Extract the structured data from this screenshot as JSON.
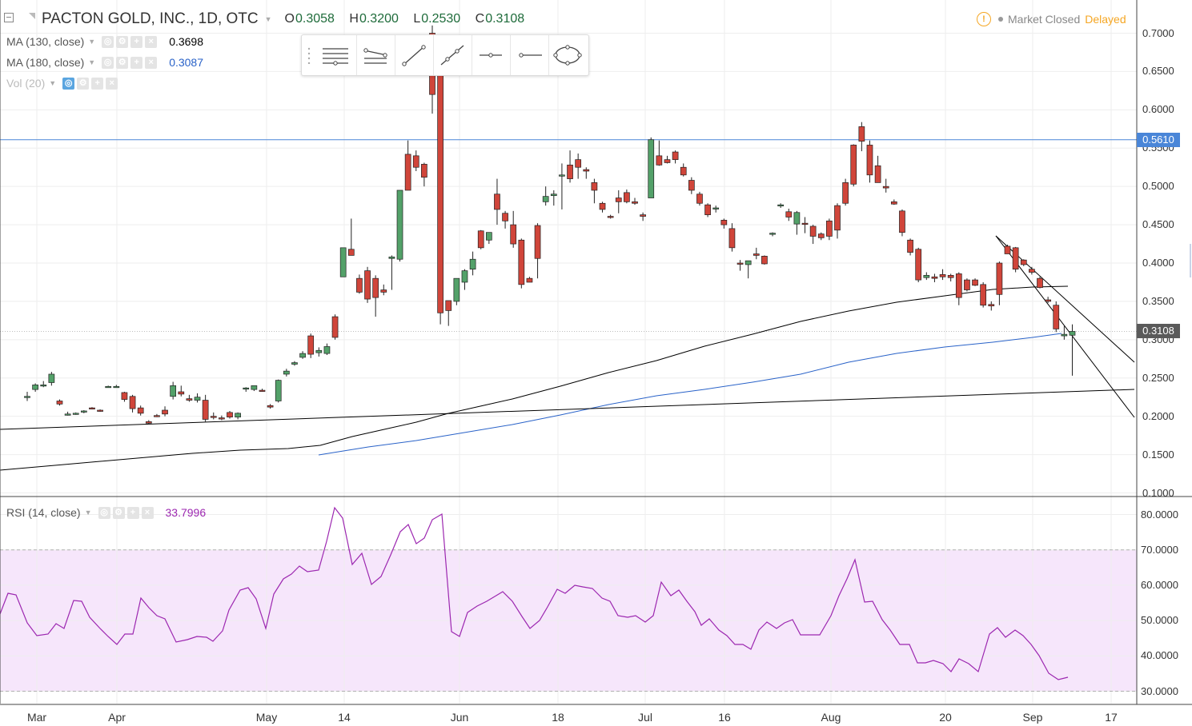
{
  "header": {
    "symbol_title": "PACTON GOLD, INC., 1D, OTC",
    "ohlc": [
      {
        "label": "O",
        "value": "0.3058"
      },
      {
        "label": "H",
        "value": "0.3200"
      },
      {
        "label": "L",
        "value": "0.2530"
      },
      {
        "label": "C",
        "value": "0.3108"
      }
    ]
  },
  "status": {
    "market": "Market Closed",
    "delayed": "Delayed",
    "icon": "warning-icon",
    "market_color": "#888888",
    "delayed_color": "#f5a623"
  },
  "indicators": [
    {
      "label": "MA (130, close)",
      "value": "0.3698",
      "color": "#000000"
    },
    {
      "label": "MA (180, close)",
      "value": "0.3087",
      "color": "#2962c8"
    },
    {
      "label": "Vol (20)",
      "value": "",
      "color": "#bbbbbb"
    }
  ],
  "rsi": {
    "label": "RSI (14, close)",
    "value": "33.7996",
    "color": "#9c27b0",
    "band_upper": 70,
    "band_lower": 30,
    "band_color": "#f6e6fb"
  },
  "toolbar": {
    "tools": [
      "horizontal-lines-tool-icon",
      "parallel-channel-tool-icon",
      "trend-line-tool-icon",
      "ray-tool-icon",
      "horizontal-ray-tool-icon",
      "horizontal-line-tool-icon",
      "ellipse-tool-icon"
    ]
  },
  "price_axis": {
    "ticks": [
      "0.7000",
      "0.6500",
      "0.6000",
      "0.5500",
      "0.5000",
      "0.4500",
      "0.4000",
      "0.3500",
      "0.3000",
      "0.2500",
      "0.2000",
      "0.1500",
      "0.1000"
    ],
    "tick_values": [
      0.7,
      0.65,
      0.6,
      0.55,
      0.5,
      0.45,
      0.4,
      0.35,
      0.3,
      0.25,
      0.2,
      0.15,
      0.1
    ],
    "horizontal_line_label": "0.5610",
    "horizontal_line_value": 0.561,
    "last_price_label": "0.3108",
    "last_price_value": 0.3108,
    "horizontal_line_color": "#4a86d8"
  },
  "rsi_axis": {
    "ticks": [
      "80.0000",
      "70.0000",
      "60.0000",
      "50.0000",
      "40.0000",
      "30.0000"
    ],
    "tick_values": [
      80,
      70,
      60,
      50,
      40,
      30
    ]
  },
  "time_axis": {
    "labels": [
      "Mar",
      "Apr",
      "May",
      "14",
      "Jun",
      "18",
      "Jul",
      "16",
      "Aug",
      "20",
      "Sep",
      "17"
    ]
  },
  "colors": {
    "up": "#53a169",
    "down": "#d0453a",
    "ma130": "#000000",
    "ma180": "#2962c8"
  },
  "chart_data": {
    "type": "candlestick",
    "symbol": "PACTON GOLD, INC.",
    "interval": "1D",
    "ylim": [
      0.1,
      0.7
    ],
    "series": [
      {
        "name": "OHLC",
        "values": [
          [
            0.226,
            0.232,
            0.22,
            0.226
          ],
          [
            0.235,
            0.243,
            0.232,
            0.241
          ],
          [
            0.241,
            0.246,
            0.238,
            0.241
          ],
          [
            0.244,
            0.258,
            0.24,
            0.255
          ],
          [
            0.22,
            0.222,
            0.214,
            0.216
          ],
          [
            0.203,
            0.206,
            0.201,
            0.203
          ],
          [
            0.203,
            0.205,
            0.202,
            0.204
          ],
          [
            0.206,
            0.208,
            0.204,
            0.207
          ],
          [
            0.211,
            0.212,
            0.209,
            0.21
          ],
          [
            0.208,
            0.209,
            0.206,
            0.207
          ],
          [
            0.239,
            0.24,
            0.238,
            0.239
          ],
          [
            0.239,
            0.241,
            0.238,
            0.239
          ],
          [
            0.231,
            0.232,
            0.219,
            0.222
          ],
          [
            0.226,
            0.228,
            0.205,
            0.21
          ],
          [
            0.211,
            0.214,
            0.201,
            0.204
          ],
          [
            0.193,
            0.195,
            0.19,
            0.191
          ],
          [
            0.201,
            0.203,
            0.199,
            0.2
          ],
          [
            0.208,
            0.213,
            0.2,
            0.203
          ],
          [
            0.226,
            0.245,
            0.222,
            0.24
          ],
          [
            0.232,
            0.24,
            0.226,
            0.229
          ],
          [
            0.223,
            0.228,
            0.219,
            0.221
          ],
          [
            0.221,
            0.23,
            0.218,
            0.225
          ],
          [
            0.221,
            0.228,
            0.193,
            0.196
          ],
          [
            0.2,
            0.205,
            0.196,
            0.199
          ],
          [
            0.198,
            0.201,
            0.195,
            0.197
          ],
          [
            0.205,
            0.207,
            0.197,
            0.199
          ],
          [
            0.199,
            0.205,
            0.196,
            0.204
          ],
          [
            0.236,
            0.238,
            0.232,
            0.237
          ],
          [
            0.235,
            0.24,
            0.233,
            0.24
          ],
          [
            0.234,
            0.236,
            0.232,
            0.233
          ],
          [
            0.214,
            0.216,
            0.21,
            0.212
          ],
          [
            0.22,
            0.248,
            0.218,
            0.247
          ],
          [
            0.255,
            0.262,
            0.252,
            0.259
          ],
          [
            0.268,
            0.272,
            0.266,
            0.27
          ],
          [
            0.277,
            0.285,
            0.275,
            0.282
          ],
          [
            0.305,
            0.308,
            0.276,
            0.281
          ],
          [
            0.283,
            0.29,
            0.278,
            0.286
          ],
          [
            0.282,
            0.295,
            0.28,
            0.291
          ],
          [
            0.33,
            0.333,
            0.3,
            0.303
          ],
          [
            0.382,
            0.42,
            0.382,
            0.42
          ],
          [
            0.418,
            0.458,
            0.414,
            0.41
          ],
          [
            0.38,
            0.385,
            0.36,
            0.362
          ],
          [
            0.39,
            0.395,
            0.348,
            0.353
          ],
          [
            0.38,
            0.384,
            0.33,
            0.355
          ],
          [
            0.365,
            0.372,
            0.358,
            0.362
          ],
          [
            0.406,
            0.41,
            0.365,
            0.408
          ],
          [
            0.405,
            0.495,
            0.402,
            0.495
          ],
          [
            0.542,
            0.56,
            0.495,
            0.495
          ],
          [
            0.54,
            0.547,
            0.52,
            0.525
          ],
          [
            0.529,
            0.531,
            0.5,
            0.512
          ],
          [
            0.7,
            0.71,
            0.595,
            0.62
          ],
          [
            0.685,
            0.69,
            0.32,
            0.335
          ],
          [
            0.351,
            0.351,
            0.318,
            0.338
          ],
          [
            0.35,
            0.38,
            0.345,
            0.38
          ],
          [
            0.375,
            0.392,
            0.365,
            0.39
          ],
          [
            0.392,
            0.415,
            0.384,
            0.405
          ],
          [
            0.442,
            0.443,
            0.418,
            0.42
          ],
          [
            0.43,
            0.44,
            0.425,
            0.44
          ],
          [
            0.49,
            0.51,
            0.45,
            0.47
          ],
          [
            0.465,
            0.468,
            0.445,
            0.455
          ],
          [
            0.45,
            0.468,
            0.42,
            0.425
          ],
          [
            0.43,
            0.432,
            0.367,
            0.372
          ],
          [
            0.38,
            0.382,
            0.375,
            0.375
          ],
          [
            0.449,
            0.452,
            0.38,
            0.406
          ],
          [
            0.48,
            0.5,
            0.475,
            0.487
          ],
          [
            0.488,
            0.495,
            0.475,
            0.49
          ],
          [
            0.515,
            0.53,
            0.47,
            0.515
          ],
          [
            0.528,
            0.547,
            0.505,
            0.51
          ],
          [
            0.535,
            0.543,
            0.51,
            0.525
          ],
          [
            0.522,
            0.525,
            0.51,
            0.52
          ],
          [
            0.505,
            0.51,
            0.478,
            0.495
          ],
          [
            0.478,
            0.48,
            0.466,
            0.47
          ],
          [
            0.461,
            0.463,
            0.458,
            0.46
          ],
          [
            0.485,
            0.495,
            0.465,
            0.48
          ],
          [
            0.492,
            0.496,
            0.478,
            0.48
          ],
          [
            0.48,
            0.485,
            0.476,
            0.478
          ],
          [
            0.463,
            0.466,
            0.455,
            0.461
          ],
          [
            0.485,
            0.564,
            0.485,
            0.561
          ],
          [
            0.54,
            0.56,
            0.527,
            0.528
          ],
          [
            0.535,
            0.54,
            0.53,
            0.531
          ],
          [
            0.545,
            0.547,
            0.53,
            0.535
          ],
          [
            0.525,
            0.53,
            0.513,
            0.515
          ],
          [
            0.508,
            0.512,
            0.49,
            0.495
          ],
          [
            0.49,
            0.493,
            0.475,
            0.478
          ],
          [
            0.476,
            0.478,
            0.46,
            0.463
          ],
          [
            0.472,
            0.475,
            0.466,
            0.472
          ],
          [
            0.456,
            0.458,
            0.445,
            0.45
          ],
          [
            0.445,
            0.452,
            0.415,
            0.42
          ],
          [
            0.4,
            0.404,
            0.39,
            0.399
          ],
          [
            0.398,
            0.402,
            0.38,
            0.403
          ],
          [
            0.412,
            0.42,
            0.405,
            0.41
          ],
          [
            0.409,
            0.41,
            0.398,
            0.399
          ],
          [
            0.438,
            0.44,
            0.435,
            0.439
          ],
          [
            0.475,
            0.478,
            0.472,
            0.476
          ],
          [
            0.467,
            0.471,
            0.455,
            0.46
          ],
          [
            0.451,
            0.468,
            0.437,
            0.466
          ],
          [
            0.452,
            0.46,
            0.439,
            0.451
          ],
          [
            0.448,
            0.45,
            0.425,
            0.435
          ],
          [
            0.438,
            0.44,
            0.43,
            0.433
          ],
          [
            0.455,
            0.458,
            0.43,
            0.435
          ],
          [
            0.475,
            0.478,
            0.432,
            0.443
          ],
          [
            0.505,
            0.51,
            0.475,
            0.478
          ],
          [
            0.554,
            0.555,
            0.5,
            0.503
          ],
          [
            0.578,
            0.584,
            0.546,
            0.559
          ],
          [
            0.554,
            0.56,
            0.505,
            0.515
          ],
          [
            0.527,
            0.54,
            0.505,
            0.505
          ],
          [
            0.5,
            0.51,
            0.492,
            0.498
          ],
          [
            0.48,
            0.483,
            0.476,
            0.477
          ],
          [
            0.468,
            0.47,
            0.435,
            0.44
          ],
          [
            0.43,
            0.432,
            0.41,
            0.414
          ],
          [
            0.418,
            0.42,
            0.375,
            0.378
          ],
          [
            0.381,
            0.388,
            0.378,
            0.384
          ],
          [
            0.382,
            0.386,
            0.375,
            0.38
          ],
          [
            0.385,
            0.392,
            0.378,
            0.382
          ],
          [
            0.384,
            0.386,
            0.376,
            0.381
          ],
          [
            0.386,
            0.388,
            0.345,
            0.355
          ],
          [
            0.378,
            0.38,
            0.363,
            0.365
          ],
          [
            0.378,
            0.38,
            0.37,
            0.371
          ],
          [
            0.372,
            0.375,
            0.342,
            0.345
          ],
          [
            0.346,
            0.35,
            0.338,
            0.344
          ],
          [
            0.4,
            0.402,
            0.345,
            0.359
          ],
          [
            0.422,
            0.424,
            0.412,
            0.412
          ],
          [
            0.42,
            0.421,
            0.388,
            0.392
          ],
          [
            0.404,
            0.405,
            0.396,
            0.398
          ],
          [
            0.392,
            0.395,
            0.385,
            0.388
          ],
          [
            0.38,
            0.382,
            0.367,
            0.368
          ],
          [
            0.352,
            0.356,
            0.348,
            0.35
          ],
          [
            0.345,
            0.35,
            0.31,
            0.314
          ],
          [
            0.305,
            0.318,
            0.3,
            0.307
          ],
          [
            0.3058,
            0.32,
            0.253,
            0.3108
          ]
        ]
      },
      {
        "name": "MA (130, close)",
        "last": 0.3698
      },
      {
        "name": "MA (180, close)",
        "last": 0.3087
      },
      {
        "name": "RSI (14, close)",
        "last": 33.7996,
        "ylim": [
          30,
          80
        ]
      }
    ]
  }
}
